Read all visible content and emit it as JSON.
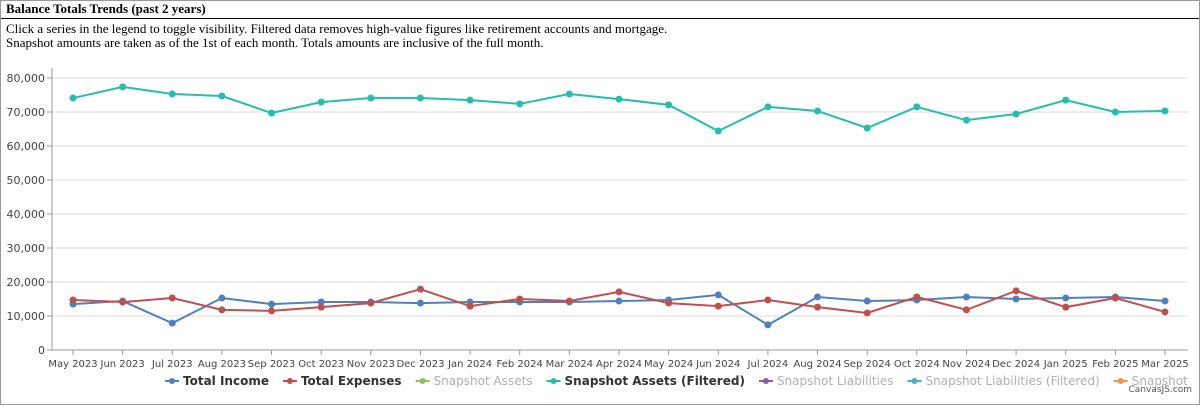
{
  "header": {
    "title": "Balance Totals Trends (past 2 years)",
    "description": [
      "Click a series in the legend to toggle visibility. Filtered data removes high-value figures like retirement accounts and mortgage.",
      "Snapshot amounts are taken as of the 1st of each month. Totals amounts are inclusive of the full month."
    ]
  },
  "chart_data": {
    "type": "line",
    "categories": [
      "May 2023",
      "Jun 2023",
      "Jul 2023",
      "Aug 2023",
      "Sep 2023",
      "Oct 2023",
      "Nov 2023",
      "Dec 2023",
      "Jan 2024",
      "Feb 2024",
      "Mar 2024",
      "Apr 2024",
      "May 2024",
      "Jun 2024",
      "Jul 2024",
      "Aug 2024",
      "Sep 2024",
      "Oct 2024",
      "Nov 2024",
      "Dec 2024",
      "Jan 2025",
      "Feb 2025",
      "Mar 2025"
    ],
    "series": [
      {
        "name": "Total Income",
        "color": "#4f81bc",
        "visible": true,
        "values": [
          13500,
          14400,
          7900,
          15300,
          13500,
          14100,
          14100,
          13800,
          14100,
          14100,
          14100,
          14400,
          14700,
          16200,
          7400,
          15600,
          14400,
          14700,
          15600,
          15000,
          15300,
          15600,
          14400
        ]
      },
      {
        "name": "Total Expenses",
        "color": "#c0504d",
        "visible": true,
        "values": [
          14700,
          14100,
          15300,
          11800,
          11500,
          12600,
          13800,
          17900,
          12900,
          15000,
          14400,
          17100,
          13800,
          12900,
          14700,
          12600,
          10900,
          15600,
          11800,
          17400,
          12600,
          15300,
          11200
        ]
      },
      {
        "name": "Snapshot Assets",
        "color": "#9bbb58",
        "visible": false
      },
      {
        "name": "Snapshot Assets (Filtered)",
        "color": "#23bfaa",
        "visible": true,
        "values": [
          74100,
          77400,
          75300,
          74700,
          69700,
          72900,
          74100,
          74100,
          73500,
          72400,
          75300,
          73800,
          72100,
          64400,
          71500,
          70300,
          65300,
          71500,
          67600,
          69400,
          73500,
          70000,
          70300
        ]
      },
      {
        "name": "Snapshot Liabilities",
        "color": "#8064a1",
        "visible": false
      },
      {
        "name": "Snapshot Liabilities (Filtered)",
        "color": "#4aacc5",
        "visible": false
      },
      {
        "name": "Snapshot",
        "color": "#f79647",
        "visible": false
      }
    ],
    "ylim": [
      0,
      80000
    ],
    "yticks": [
      0,
      {
        "value": 10000,
        "label": "10,000"
      },
      {
        "value": 20000,
        "label": "20,000"
      },
      {
        "value": 30000,
        "label": "30,000"
      },
      {
        "value": 40000,
        "label": "40,000"
      },
      {
        "value": 50000,
        "label": "50,000"
      },
      {
        "value": 60000,
        "label": "60,000"
      },
      {
        "value": 70000,
        "label": "70,000"
      },
      {
        "value": 80000,
        "label": "80,000"
      }
    ],
    "grid": true,
    "legend": "bottom",
    "watermark": "CanvasJS.com"
  }
}
